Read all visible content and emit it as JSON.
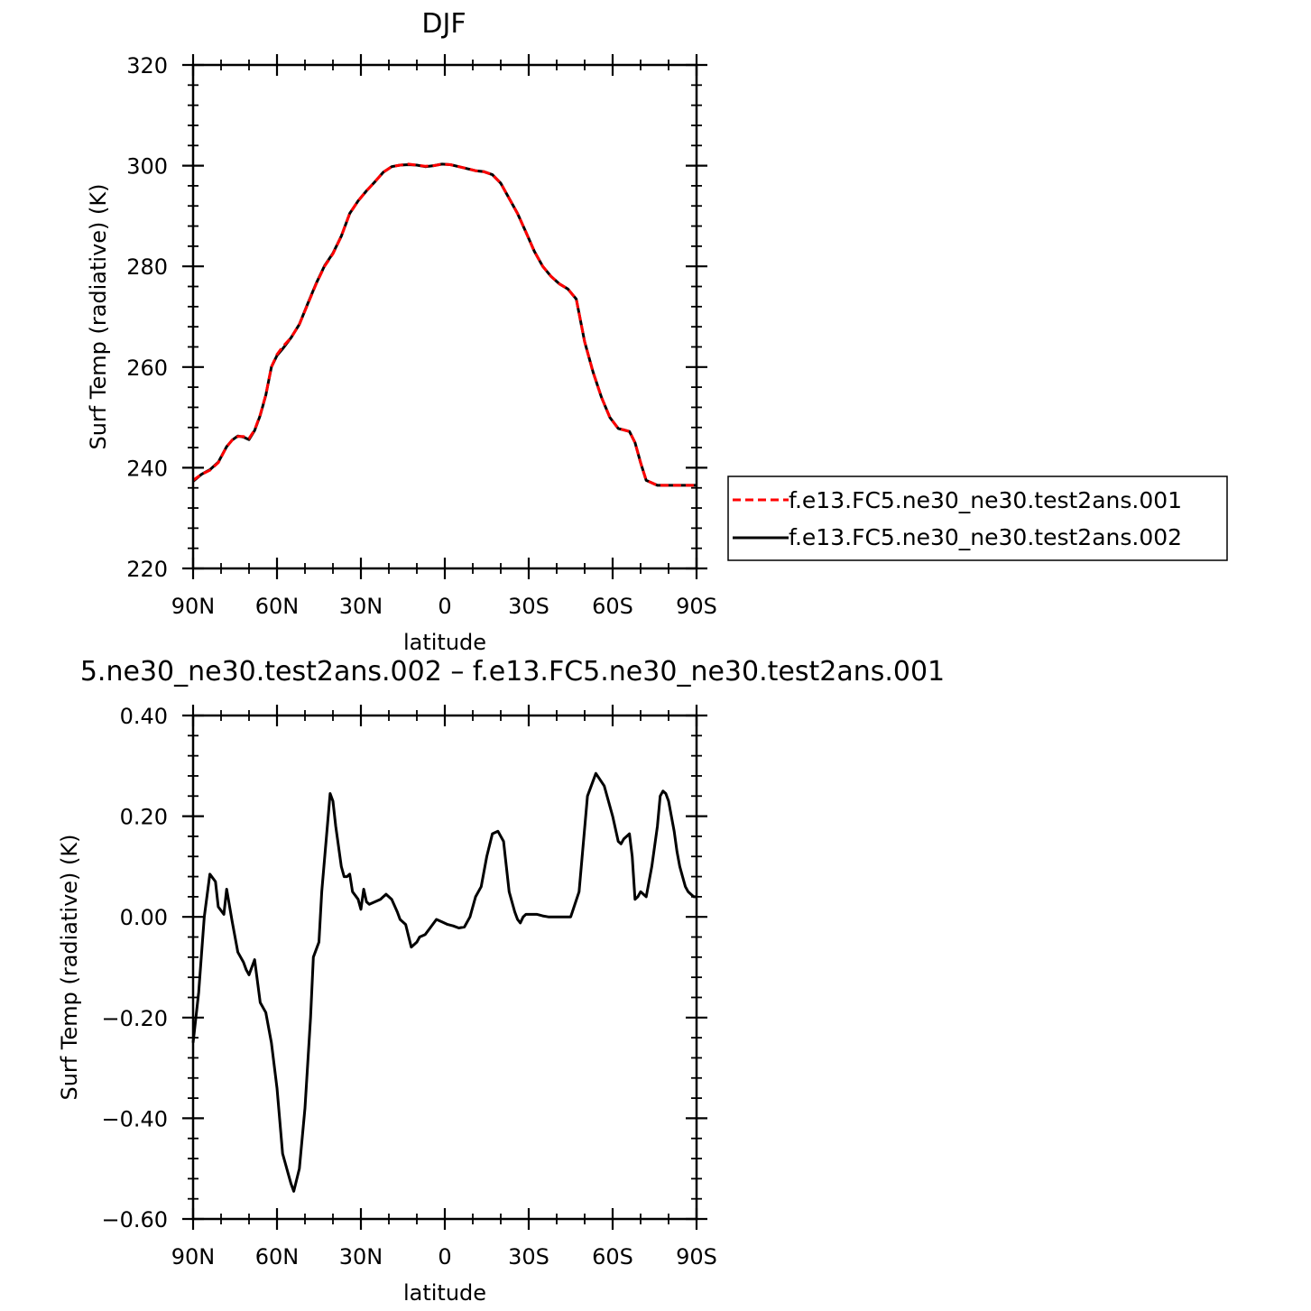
{
  "chart_data": [
    {
      "type": "line",
      "title": "DJF",
      "xlabel": "latitude",
      "ylabel": "Surf Temp (radiative) (K)",
      "xlim": [
        -90,
        90
      ],
      "ylim": [
        220,
        320
      ],
      "x_tick_values": [
        -90,
        -60,
        -30,
        0,
        30,
        60,
        90
      ],
      "x_tick_labels": [
        "90N",
        "60N",
        "30N",
        "0",
        "30S",
        "60S",
        "90S"
      ],
      "y_tick_values": [
        220,
        240,
        260,
        280,
        300,
        320
      ],
      "y_tick_labels": [
        "220",
        "240",
        "260",
        "280",
        "300",
        "320"
      ],
      "grid": false,
      "legend_position": "right",
      "series": [
        {
          "name": "f.e13.FC5.ne30_ne30.test2ans.001",
          "color": "#ff0000",
          "dash": "dashed",
          "x": [
            -90,
            -87,
            -84,
            -81,
            -78,
            -76,
            -74,
            -72,
            -70,
            -68,
            -66,
            -64,
            -62,
            -60,
            -58,
            -55,
            -52,
            -49,
            -46,
            -43,
            -40,
            -37,
            -34,
            -31,
            -28,
            -25,
            -22,
            -19,
            -16,
            -13,
            -10,
            -7,
            -4,
            -1,
            2,
            5,
            8,
            11,
            14,
            17,
            20,
            23,
            26,
            29,
            32,
            35,
            38,
            41,
            44,
            47,
            50,
            53,
            56,
            59,
            62,
            64,
            66,
            68,
            70,
            72,
            74,
            76,
            78,
            80,
            82,
            84,
            86,
            88,
            90
          ],
          "y": [
            237.5,
            238.7,
            239.5,
            241.0,
            244.2,
            245.5,
            246.2,
            246.2,
            245.8,
            247.5,
            250.5,
            254.5,
            260.0,
            262.5,
            264.0,
            265.8,
            268.5,
            272.5,
            276.5,
            280.0,
            282.5,
            286.0,
            290.5,
            293.0,
            295.0,
            296.8,
            298.7,
            299.8,
            300.1,
            300.3,
            300.1,
            299.9,
            300.0,
            300.3,
            300.2,
            299.8,
            299.4,
            299.0,
            298.8,
            298.2,
            296.5,
            293.5,
            290.5,
            286.8,
            283.0,
            280.0,
            278.0,
            276.5,
            275.5,
            273.5,
            265.0,
            259.0,
            254.0,
            250.0,
            247.8,
            247.5,
            247.2,
            245.0,
            241.0,
            237.5,
            237.0,
            236.5,
            236.5,
            236.5,
            236.5,
            236.5,
            236.5,
            236.5,
            236.5
          ]
        },
        {
          "name": "f.e13.FC5.ne30_ne30.test2ans.002",
          "color": "#000000",
          "dash": "solid",
          "x": [
            -90,
            -87,
            -84,
            -81,
            -78,
            -76,
            -74,
            -72,
            -70,
            -68,
            -66,
            -64,
            -62,
            -60,
            -58,
            -55,
            -52,
            -49,
            -46,
            -43,
            -40,
            -37,
            -34,
            -31,
            -28,
            -25,
            -22,
            -19,
            -16,
            -13,
            -10,
            -7,
            -4,
            -1,
            2,
            5,
            8,
            11,
            14,
            17,
            20,
            23,
            26,
            29,
            32,
            35,
            38,
            41,
            44,
            47,
            50,
            53,
            56,
            59,
            62,
            64,
            66,
            68,
            70,
            72,
            74,
            76,
            78,
            80,
            82,
            84,
            86,
            88,
            90
          ],
          "y": [
            237.3,
            238.7,
            239.6,
            241.1,
            244.2,
            245.5,
            246.3,
            246.1,
            245.6,
            247.4,
            250.4,
            254.4,
            260.0,
            262.3,
            263.6,
            265.8,
            268.5,
            272.6,
            276.6,
            280.1,
            282.6,
            286.0,
            290.5,
            293.0,
            295.0,
            296.8,
            298.7,
            299.8,
            300.1,
            300.2,
            300.1,
            299.8,
            300.0,
            300.3,
            300.2,
            299.8,
            299.4,
            299.0,
            298.8,
            298.2,
            296.5,
            293.5,
            290.5,
            286.8,
            283.0,
            280.0,
            278.0,
            276.5,
            275.5,
            273.5,
            265.0,
            259.0,
            254.0,
            250.0,
            247.8,
            247.5,
            247.2,
            245.0,
            241.0,
            237.5,
            237.0,
            236.5,
            236.5,
            236.5,
            236.5,
            236.5,
            236.5,
            236.5,
            236.5
          ]
        }
      ]
    },
    {
      "type": "line",
      "title": "5.ne30_ne30.test2ans.002 – f.e13.FC5.ne30_ne30.test2ans.001",
      "xlabel": "latitude",
      "ylabel": "Surf Temp (radiative) (K)",
      "xlim": [
        -90,
        90
      ],
      "ylim": [
        -0.6,
        0.4
      ],
      "x_tick_values": [
        -90,
        -60,
        -30,
        0,
        30,
        60,
        90
      ],
      "x_tick_labels": [
        "90N",
        "60N",
        "30N",
        "0",
        "30S",
        "60S",
        "90S"
      ],
      "y_tick_values": [
        -0.6,
        -0.4,
        -0.2,
        0.0,
        0.2,
        0.4
      ],
      "y_tick_labels": [
        "−0.60",
        "−0.40",
        "−0.20",
        "0.00",
        "0.20",
        "0.40"
      ],
      "grid": false,
      "series": [
        {
          "color": "#000000",
          "dash": "solid",
          "x": [
            -90,
            -88,
            -86,
            -84,
            -82,
            -81,
            -79,
            -78,
            -76,
            -74,
            -72,
            -71,
            -70,
            -68,
            -66,
            -64,
            -62,
            -60,
            -58,
            -57,
            -56,
            -55,
            -54,
            -52,
            -50,
            -48,
            -47,
            -45,
            -44,
            -42,
            -41,
            -40,
            -39,
            -37,
            -36,
            -35,
            -34,
            -33,
            -31,
            -30,
            -29,
            -28,
            -27,
            -25,
            -23,
            -22,
            -21,
            -19,
            -17,
            -16,
            -14,
            -12,
            -10,
            -9,
            -7,
            -5,
            -3,
            -1,
            1,
            3,
            5,
            7,
            9,
            11,
            13,
            15,
            17,
            19,
            21,
            22,
            23,
            24,
            25,
            26,
            27,
            28,
            29,
            30,
            31,
            33,
            35,
            37,
            39,
            42,
            45,
            48,
            51,
            54,
            57,
            60,
            62,
            63,
            64,
            66,
            67,
            68,
            69,
            70,
            72,
            74,
            76,
            77,
            78,
            79,
            80,
            81,
            82,
            83,
            84,
            85,
            86,
            87,
            88,
            89,
            90
          ],
          "y": [
            -0.25,
            -0.15,
            0.0,
            0.085,
            0.07,
            0.02,
            0.005,
            0.055,
            -0.01,
            -0.07,
            -0.09,
            -0.105,
            -0.115,
            -0.085,
            -0.17,
            -0.19,
            -0.25,
            -0.34,
            -0.47,
            -0.49,
            -0.51,
            -0.53,
            -0.545,
            -0.5,
            -0.38,
            -0.2,
            -0.08,
            -0.05,
            0.05,
            0.18,
            0.245,
            0.23,
            0.18,
            0.1,
            0.08,
            0.08,
            0.085,
            0.05,
            0.035,
            0.015,
            0.055,
            0.03,
            0.025,
            0.03,
            0.035,
            0.04,
            0.045,
            0.035,
            0.01,
            -0.005,
            -0.015,
            -0.06,
            -0.05,
            -0.04,
            -0.035,
            -0.02,
            -0.005,
            -0.01,
            -0.015,
            -0.018,
            -0.022,
            -0.02,
            0.0,
            0.04,
            0.06,
            0.12,
            0.165,
            0.17,
            0.15,
            0.1,
            0.05,
            0.03,
            0.01,
            -0.005,
            -0.012,
            0.0,
            0.005,
            0.005,
            0.005,
            0.005,
            0.002,
            0.0,
            0.0,
            0.0,
            0.0,
            0.05,
            0.24,
            0.285,
            0.26,
            0.2,
            0.15,
            0.145,
            0.155,
            0.165,
            0.12,
            0.035,
            0.04,
            0.05,
            0.04,
            0.1,
            0.18,
            0.24,
            0.25,
            0.245,
            0.23,
            0.2,
            0.17,
            0.13,
            0.1,
            0.08,
            0.06,
            0.05,
            0.045,
            0.04,
            0.04
          ]
        }
      ]
    }
  ]
}
